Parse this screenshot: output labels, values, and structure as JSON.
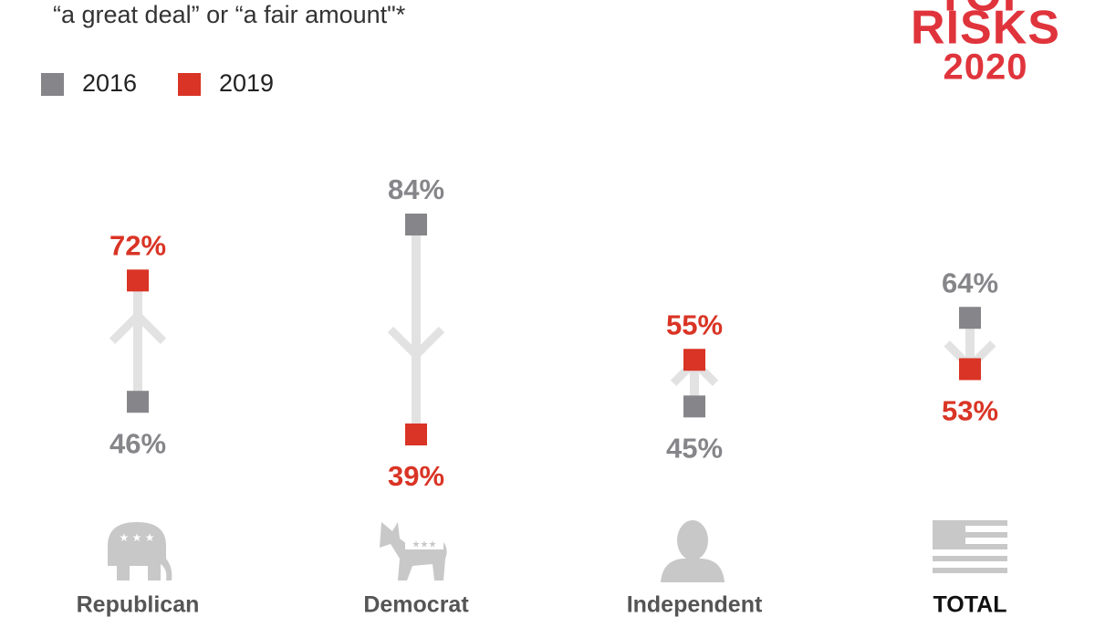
{
  "chart_data": {
    "type": "dumbbell",
    "subtitle": "“a great deal”  or “a fair amount\"*",
    "logo": [
      "TOP",
      "RISKS",
      "2020"
    ],
    "categories": [
      "Republican",
      "Democrat",
      "Independent",
      "TOTAL"
    ],
    "series": [
      {
        "name": "2016",
        "color": "#86868a",
        "values": [
          46,
          84,
          45,
          64
        ],
        "value_labels": [
          "46%",
          "84%",
          "45%",
          "64%"
        ]
      },
      {
        "name": "2019",
        "color": "#d93425",
        "values": [
          72,
          39,
          55,
          53
        ],
        "value_labels": [
          "72%",
          "39%",
          "55%",
          "53%"
        ]
      }
    ]
  }
}
